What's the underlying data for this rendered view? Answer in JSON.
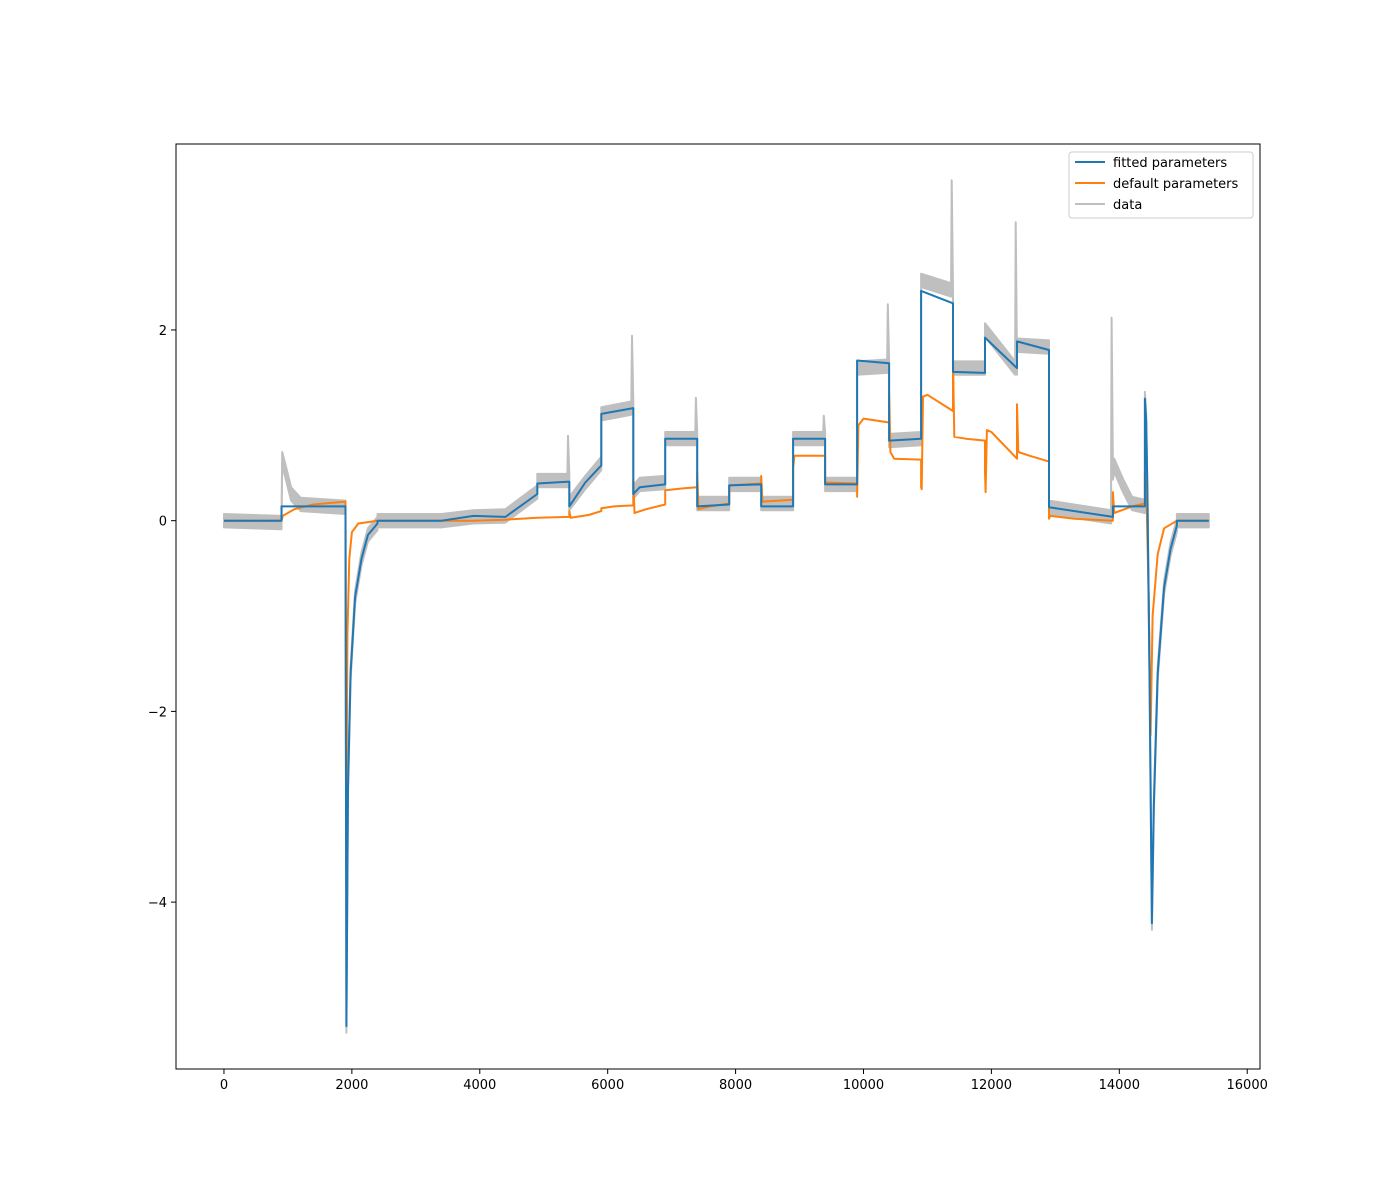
{
  "chart_data": {
    "type": "line",
    "title": "",
    "xlabel": "",
    "ylabel": "",
    "xlim": [
      -750,
      16200
    ],
    "ylim": [
      -5.75,
      3.95
    ],
    "xticks": [
      0,
      2000,
      4000,
      6000,
      8000,
      10000,
      12000,
      14000,
      16000
    ],
    "xtick_labels": [
      "0",
      "2000",
      "4000",
      "6000",
      "8000",
      "10000",
      "12000",
      "14000",
      "16000"
    ],
    "yticks": [
      -4,
      -2,
      0,
      2
    ],
    "ytick_labels": [
      "−4",
      "−2",
      "0",
      "2"
    ],
    "grid": false,
    "legend_position": "top-right",
    "colors": {
      "fitted": "#1f77b4",
      "default": "#ff7f0e",
      "data": "#bfbfbf"
    },
    "series": [
      {
        "name": "fitted parameters",
        "color": "#1f77b4",
        "points": [
          [
            0,
            0.0
          ],
          [
            900,
            0.0
          ],
          [
            900,
            0.15
          ],
          [
            1900,
            0.15
          ],
          [
            1900,
            0.05
          ],
          [
            1915,
            -5.3
          ],
          [
            1940,
            -2.8
          ],
          [
            1980,
            -1.6
          ],
          [
            2050,
            -0.8
          ],
          [
            2150,
            -0.4
          ],
          [
            2250,
            -0.15
          ],
          [
            2400,
            -0.03
          ],
          [
            2400,
            0.0
          ],
          [
            3400,
            0.0
          ],
          [
            3900,
            0.05
          ],
          [
            4400,
            0.04
          ],
          [
            4900,
            0.28
          ],
          [
            4900,
            0.39
          ],
          [
            5400,
            0.41
          ],
          [
            5400,
            0.15
          ],
          [
            5650,
            0.4
          ],
          [
            5900,
            0.58
          ],
          [
            5900,
            1.12
          ],
          [
            6400,
            1.18
          ],
          [
            6400,
            0.28
          ],
          [
            6500,
            0.35
          ],
          [
            6900,
            0.38
          ],
          [
            6900,
            0.86
          ],
          [
            7400,
            0.86
          ],
          [
            7400,
            0.15
          ],
          [
            7900,
            0.17
          ],
          [
            7900,
            0.37
          ],
          [
            8400,
            0.38
          ],
          [
            8400,
            0.15
          ],
          [
            8900,
            0.15
          ],
          [
            8900,
            0.86
          ],
          [
            9400,
            0.86
          ],
          [
            9400,
            0.38
          ],
          [
            9900,
            0.38
          ],
          [
            9900,
            1.68
          ],
          [
            10400,
            1.65
          ],
          [
            10400,
            0.84
          ],
          [
            10900,
            0.86
          ],
          [
            10900,
            2.41
          ],
          [
            11400,
            2.28
          ],
          [
            11400,
            1.56
          ],
          [
            11900,
            1.55
          ],
          [
            11900,
            1.92
          ],
          [
            12400,
            1.6
          ],
          [
            12400,
            1.88
          ],
          [
            12900,
            1.79
          ],
          [
            12900,
            0.14
          ],
          [
            13900,
            0.04
          ],
          [
            13900,
            0.15
          ],
          [
            14400,
            0.15
          ],
          [
            14400,
            1.28
          ],
          [
            14420,
            1.05
          ],
          [
            14440,
            0.3
          ],
          [
            14470,
            -1.5
          ],
          [
            14510,
            -4.22
          ],
          [
            14540,
            -3.0
          ],
          [
            14600,
            -1.6
          ],
          [
            14700,
            -0.7
          ],
          [
            14800,
            -0.3
          ],
          [
            14900,
            -0.05
          ],
          [
            14900,
            0.0
          ],
          [
            15400,
            0.0
          ]
        ]
      },
      {
        "name": "default parameters",
        "color": "#ff7f0e",
        "points": [
          [
            0,
            0.0
          ],
          [
            900,
            0.0
          ],
          [
            920,
            0.05
          ],
          [
            1100,
            0.12
          ],
          [
            1400,
            0.17
          ],
          [
            1900,
            0.2
          ],
          [
            1900,
            0.1
          ],
          [
            1912,
            -3.65
          ],
          [
            1930,
            -1.2
          ],
          [
            1960,
            -0.4
          ],
          [
            2000,
            -0.12
          ],
          [
            2100,
            -0.03
          ],
          [
            2400,
            0.0
          ],
          [
            3900,
            0.0
          ],
          [
            4400,
            0.01
          ],
          [
            4900,
            0.03
          ],
          [
            5400,
            0.04
          ],
          [
            5400,
            0.1
          ],
          [
            5420,
            0.03
          ],
          [
            5700,
            0.06
          ],
          [
            5900,
            0.1
          ],
          [
            5900,
            0.13
          ],
          [
            6100,
            0.15
          ],
          [
            6400,
            0.16
          ],
          [
            6400,
            0.42
          ],
          [
            6420,
            0.08
          ],
          [
            6600,
            0.12
          ],
          [
            6900,
            0.17
          ],
          [
            6900,
            0.32
          ],
          [
            7200,
            0.34
          ],
          [
            7400,
            0.35
          ],
          [
            7400,
            0.5
          ],
          [
            7420,
            0.12
          ],
          [
            7600,
            0.15
          ],
          [
            7900,
            0.18
          ],
          [
            7900,
            0.37
          ],
          [
            8400,
            0.39
          ],
          [
            8400,
            0.47
          ],
          [
            8420,
            0.2
          ],
          [
            8900,
            0.22
          ],
          [
            8900,
            0.55
          ],
          [
            8920,
            0.68
          ],
          [
            9400,
            0.68
          ],
          [
            9400,
            0.4
          ],
          [
            9900,
            0.39
          ],
          [
            9900,
            0.25
          ],
          [
            9920,
            1.0
          ],
          [
            10000,
            1.07
          ],
          [
            10400,
            1.03
          ],
          [
            10400,
            1.35
          ],
          [
            10420,
            0.72
          ],
          [
            10480,
            0.65
          ],
          [
            10900,
            0.64
          ],
          [
            10900,
            0.35
          ],
          [
            10910,
            0.33
          ],
          [
            10930,
            1.3
          ],
          [
            11000,
            1.32
          ],
          [
            11400,
            1.15
          ],
          [
            11400,
            1.7
          ],
          [
            11420,
            0.88
          ],
          [
            11600,
            0.86
          ],
          [
            11900,
            0.84
          ],
          [
            11900,
            0.5
          ],
          [
            11910,
            0.3
          ],
          [
            11930,
            0.95
          ],
          [
            12000,
            0.93
          ],
          [
            12400,
            0.65
          ],
          [
            12400,
            1.22
          ],
          [
            12420,
            0.72
          ],
          [
            12600,
            0.68
          ],
          [
            12900,
            0.62
          ],
          [
            12900,
            0.02
          ],
          [
            12920,
            0.05
          ],
          [
            13300,
            0.02
          ],
          [
            13900,
            0.0
          ],
          [
            13900,
            0.3
          ],
          [
            13920,
            0.08
          ],
          [
            14200,
            0.15
          ],
          [
            14400,
            0.18
          ],
          [
            14400,
            0.5
          ],
          [
            14430,
            0.1
          ],
          [
            14460,
            -0.8
          ],
          [
            14490,
            -2.25
          ],
          [
            14520,
            -1.0
          ],
          [
            14600,
            -0.35
          ],
          [
            14700,
            -0.08
          ],
          [
            14900,
            0.0
          ],
          [
            15400,
            0.0
          ]
        ]
      },
      {
        "name": "data",
        "color": "#bfbfbf",
        "band_halfwidth": 0.07,
        "points": [
          [
            0,
            0.0
          ],
          [
            900,
            -0.02
          ],
          [
            910,
            0.65
          ],
          [
            950,
            0.55
          ],
          [
            1050,
            0.28
          ],
          [
            1200,
            0.17
          ],
          [
            1900,
            0.14
          ],
          [
            1900,
            0.05
          ],
          [
            1915,
            -5.3
          ],
          [
            1940,
            -2.8
          ],
          [
            1980,
            -1.6
          ],
          [
            2050,
            -0.8
          ],
          [
            2150,
            -0.4
          ],
          [
            2250,
            -0.15
          ],
          [
            2400,
            -0.03
          ],
          [
            2400,
            0.0
          ],
          [
            3400,
            0.0
          ],
          [
            3900,
            0.04
          ],
          [
            4400,
            0.05
          ],
          [
            4900,
            0.3
          ],
          [
            4900,
            0.42
          ],
          [
            5370,
            0.42
          ],
          [
            5380,
            0.82
          ],
          [
            5400,
            0.42
          ],
          [
            5400,
            0.18
          ],
          [
            5650,
            0.4
          ],
          [
            5900,
            0.6
          ],
          [
            5900,
            1.12
          ],
          [
            6370,
            1.18
          ],
          [
            6380,
            1.87
          ],
          [
            6400,
            1.18
          ],
          [
            6400,
            0.3
          ],
          [
            6500,
            0.38
          ],
          [
            6900,
            0.4
          ],
          [
            6900,
            0.86
          ],
          [
            7370,
            0.86
          ],
          [
            7380,
            1.22
          ],
          [
            7400,
            0.86
          ],
          [
            7400,
            0.18
          ],
          [
            7900,
            0.18
          ],
          [
            7900,
            0.38
          ],
          [
            8400,
            0.38
          ],
          [
            8400,
            0.18
          ],
          [
            8900,
            0.18
          ],
          [
            8900,
            0.86
          ],
          [
            9370,
            0.86
          ],
          [
            9380,
            1.03
          ],
          [
            9400,
            0.86
          ],
          [
            9400,
            0.38
          ],
          [
            9900,
            0.38
          ],
          [
            9900,
            1.6
          ],
          [
            10370,
            1.62
          ],
          [
            10380,
            2.2
          ],
          [
            10400,
            1.62
          ],
          [
            10400,
            0.84
          ],
          [
            10900,
            0.86
          ],
          [
            10900,
            2.52
          ],
          [
            11370,
            2.42
          ],
          [
            11380,
            3.5
          ],
          [
            11400,
            2.35
          ],
          [
            11400,
            1.6
          ],
          [
            11900,
            1.6
          ],
          [
            11900,
            2.0
          ],
          [
            12370,
            1.6
          ],
          [
            12380,
            3.06
          ],
          [
            12400,
            1.6
          ],
          [
            12400,
            1.84
          ],
          [
            12900,
            1.82
          ],
          [
            12900,
            0.14
          ],
          [
            13870,
            0.04
          ],
          [
            13880,
            2.06
          ],
          [
            13900,
            0.5
          ],
          [
            13920,
            0.58
          ],
          [
            14050,
            0.38
          ],
          [
            14200,
            0.18
          ],
          [
            14400,
            0.15
          ],
          [
            14400,
            1.28
          ],
          [
            14420,
            1.05
          ],
          [
            14440,
            0.3
          ],
          [
            14470,
            -1.5
          ],
          [
            14510,
            -4.22
          ],
          [
            14540,
            -3.0
          ],
          [
            14600,
            -1.6
          ],
          [
            14700,
            -0.7
          ],
          [
            14800,
            -0.3
          ],
          [
            14900,
            -0.05
          ],
          [
            14900,
            0.0
          ],
          [
            15400,
            0.0
          ]
        ]
      }
    ]
  }
}
